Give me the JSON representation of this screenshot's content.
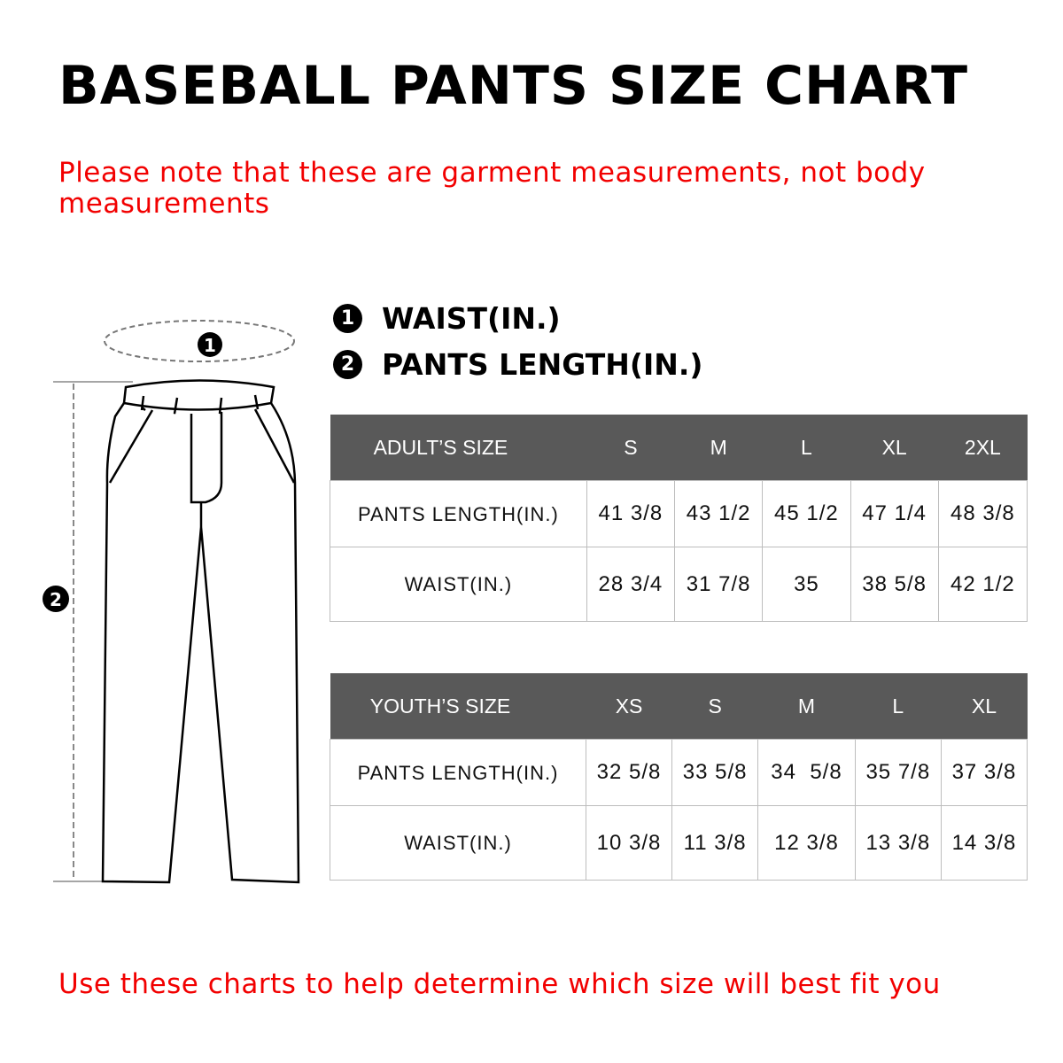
{
  "title": "BASEBALL PANTS SIZE CHART",
  "note": "Please note that these are garment measurements, not body measurements",
  "legend": [
    {
      "num": "1",
      "label": "WAIST(IN.)"
    },
    {
      "num": "2",
      "label": "PANTS LENGTH(IN.)"
    }
  ],
  "adult": {
    "header": [
      "ADULT’S SIZE",
      "S",
      "M",
      "L",
      "XL",
      "2XL"
    ],
    "rows": [
      {
        "label": "PANTS LENGTH(IN.)",
        "values": [
          "41 3/8",
          "43 1/2",
          "45 1/2",
          "47 1/4",
          "48 3/8"
        ]
      },
      {
        "label": "WAIST(IN.)",
        "values": [
          "28 3/4",
          "31 7/8",
          "35",
          "38 5/8",
          "42 1/2"
        ]
      }
    ]
  },
  "youth": {
    "header": [
      "YOUTH’S SIZE",
      "XS",
      "S",
      "M",
      "L",
      "XL"
    ],
    "rows": [
      {
        "label": "PANTS LENGTH(IN.)",
        "values": [
          "32 5/8",
          "33 5/8",
          "34  5/8",
          "35 7/8",
          "37 3/8"
        ]
      },
      {
        "label": "WAIST(IN.)",
        "values": [
          "10 3/8",
          "11 3/8",
          "12 3/8",
          "13 3/8",
          "14 3/8"
        ]
      }
    ]
  },
  "footer": "Use these charts to help determine which size will best fit you",
  "colors": {
    "note": "#f20000",
    "header_bg": "#595959"
  }
}
